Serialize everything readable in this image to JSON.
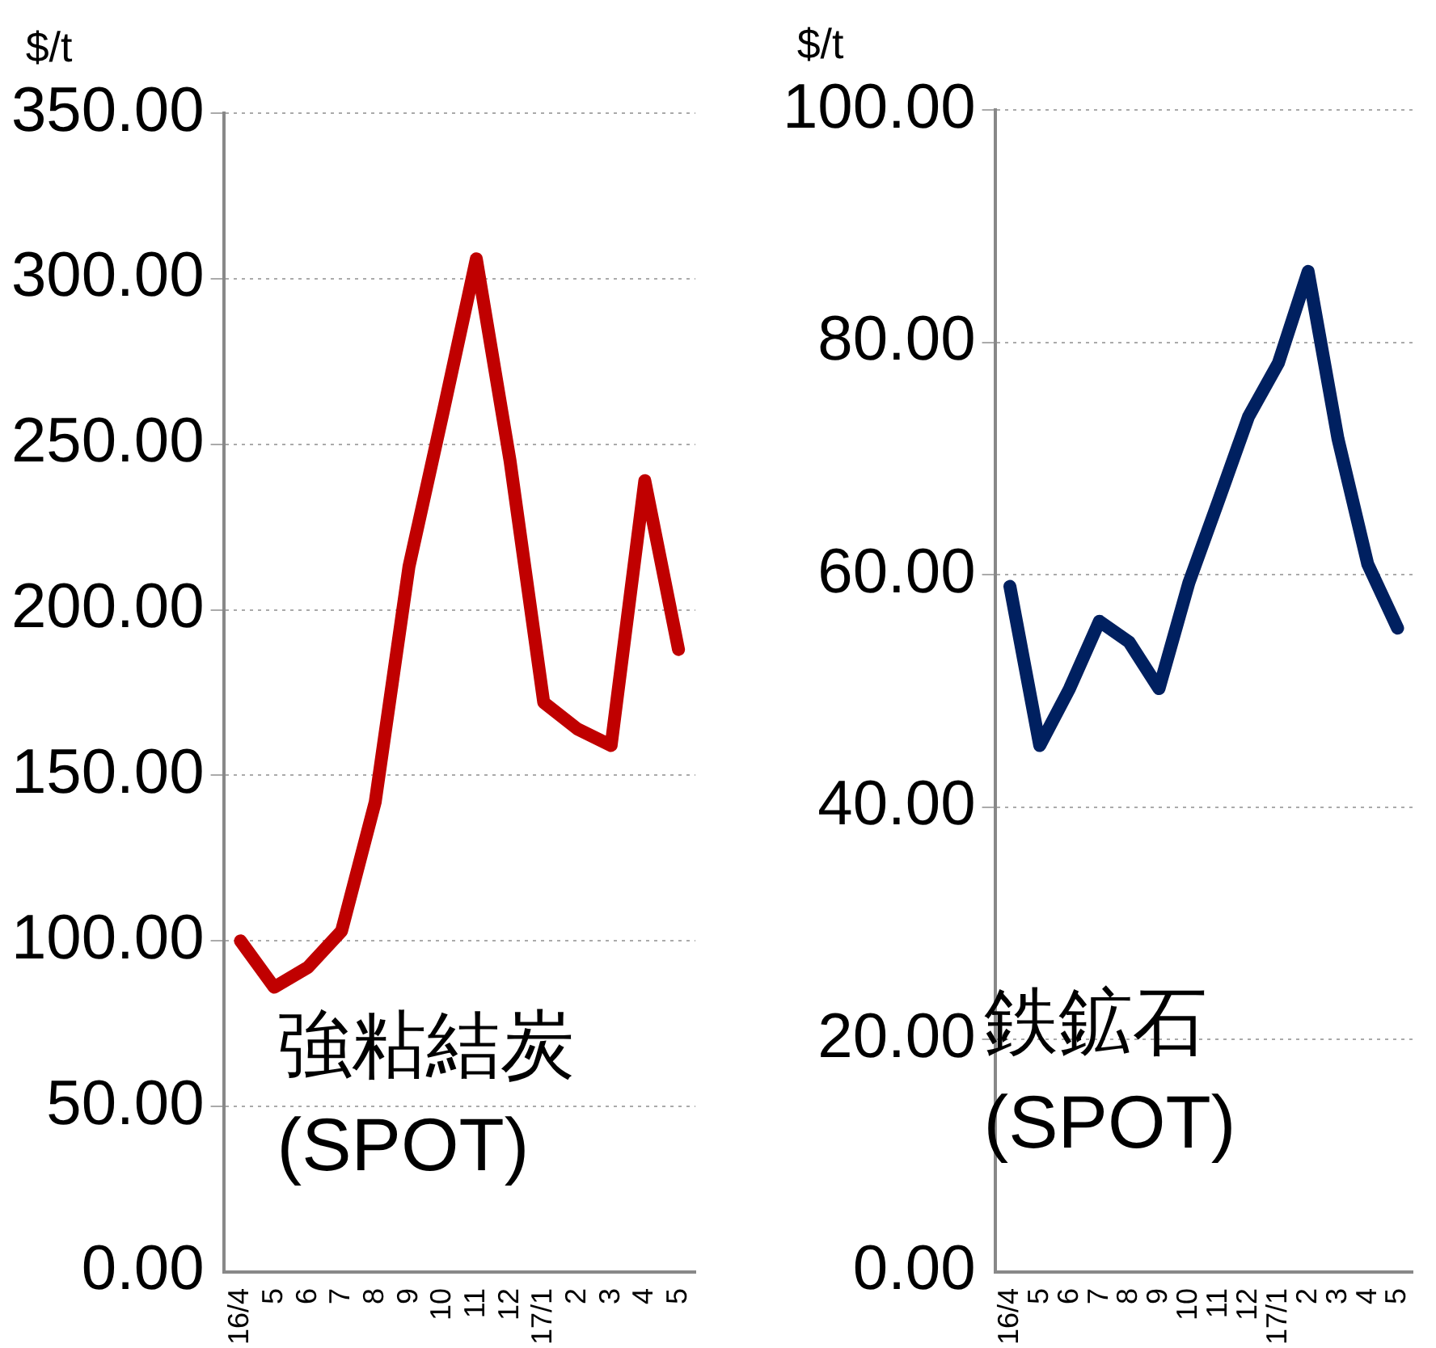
{
  "chart_data": [
    {
      "type": "line",
      "ylabel": "$/t",
      "annotations": [
        "強粘結炭\n(SPOT)"
      ],
      "categories": [
        "16/4",
        "5",
        "6",
        "7",
        "8",
        "9",
        "10",
        "11",
        "12",
        "17/1",
        "2",
        "3",
        "4",
        "5"
      ],
      "series": [
        {
          "color": "#c00000",
          "values": [
            100,
            86,
            92,
            103,
            142,
            213,
            259,
            306,
            245,
            172,
            164,
            159,
            239,
            188
          ]
        }
      ],
      "ylim": [
        0,
        350
      ],
      "yticks": [
        {
          "value": 0,
          "label": "0.00"
        },
        {
          "value": 50,
          "label": "50.00"
        },
        {
          "value": 100,
          "label": "100.00"
        },
        {
          "value": 150,
          "label": "150.00"
        },
        {
          "value": 200,
          "label": "200.00"
        },
        {
          "value": 250,
          "label": "250.00"
        },
        {
          "value": 300,
          "label": "300.00"
        },
        {
          "value": 350,
          "label": "350.00"
        }
      ],
      "grid": "y",
      "legend": false,
      "marker": "none",
      "line_style": "solid"
    },
    {
      "type": "line",
      "ylabel": "$/t",
      "annotations": [
        "鉄鉱石\n(SPOT)"
      ],
      "categories": [
        "16/4",
        "5",
        "6",
        "7",
        "8",
        "9",
        "10",
        "11",
        "12",
        "17/1",
        "2",
        "3",
        "4",
        "5"
      ],
      "series": [
        {
          "color": "#002060",
          "values": [
            59.0,
            45.3,
            50.2,
            56.0,
            54.2,
            50.2,
            59.3,
            66.4,
            73.6,
            78.2,
            86.1,
            71.7,
            60.9,
            55.4
          ]
        }
      ],
      "ylim": [
        0,
        100
      ],
      "yticks": [
        {
          "value": 0,
          "label": "0.00"
        },
        {
          "value": 20,
          "label": "20.00"
        },
        {
          "value": 40,
          "label": "40.00"
        },
        {
          "value": 60,
          "label": "60.00"
        },
        {
          "value": 80,
          "label": "80.00"
        },
        {
          "value": 100,
          "label": "100.00"
        }
      ],
      "grid": "y",
      "legend": false,
      "marker": "none",
      "line_style": "solid"
    }
  ]
}
